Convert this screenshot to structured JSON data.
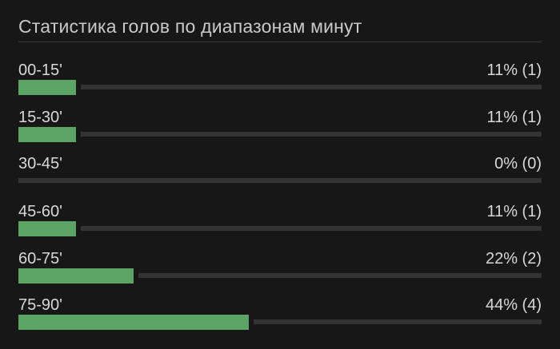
{
  "title": "Статистика голов по диапазонам минут",
  "colors": {
    "background": "#171717",
    "bar_fill": "#5ba466",
    "bar_track": "#333333",
    "text": "#d8d8d8"
  },
  "rows": [
    {
      "label": "00-15'",
      "value": "11% (1)",
      "fraction": 0.11
    },
    {
      "label": "15-30'",
      "value": "11% (1)",
      "fraction": 0.11
    },
    {
      "label": "30-45'",
      "value": "0% (0)",
      "fraction": 0.0
    },
    {
      "label": "45-60'",
      "value": "11% (1)",
      "fraction": 0.11
    },
    {
      "label": "60-75'",
      "value": "22% (2)",
      "fraction": 0.22
    },
    {
      "label": "75-90'",
      "value": "44% (4)",
      "fraction": 0.44
    }
  ]
}
